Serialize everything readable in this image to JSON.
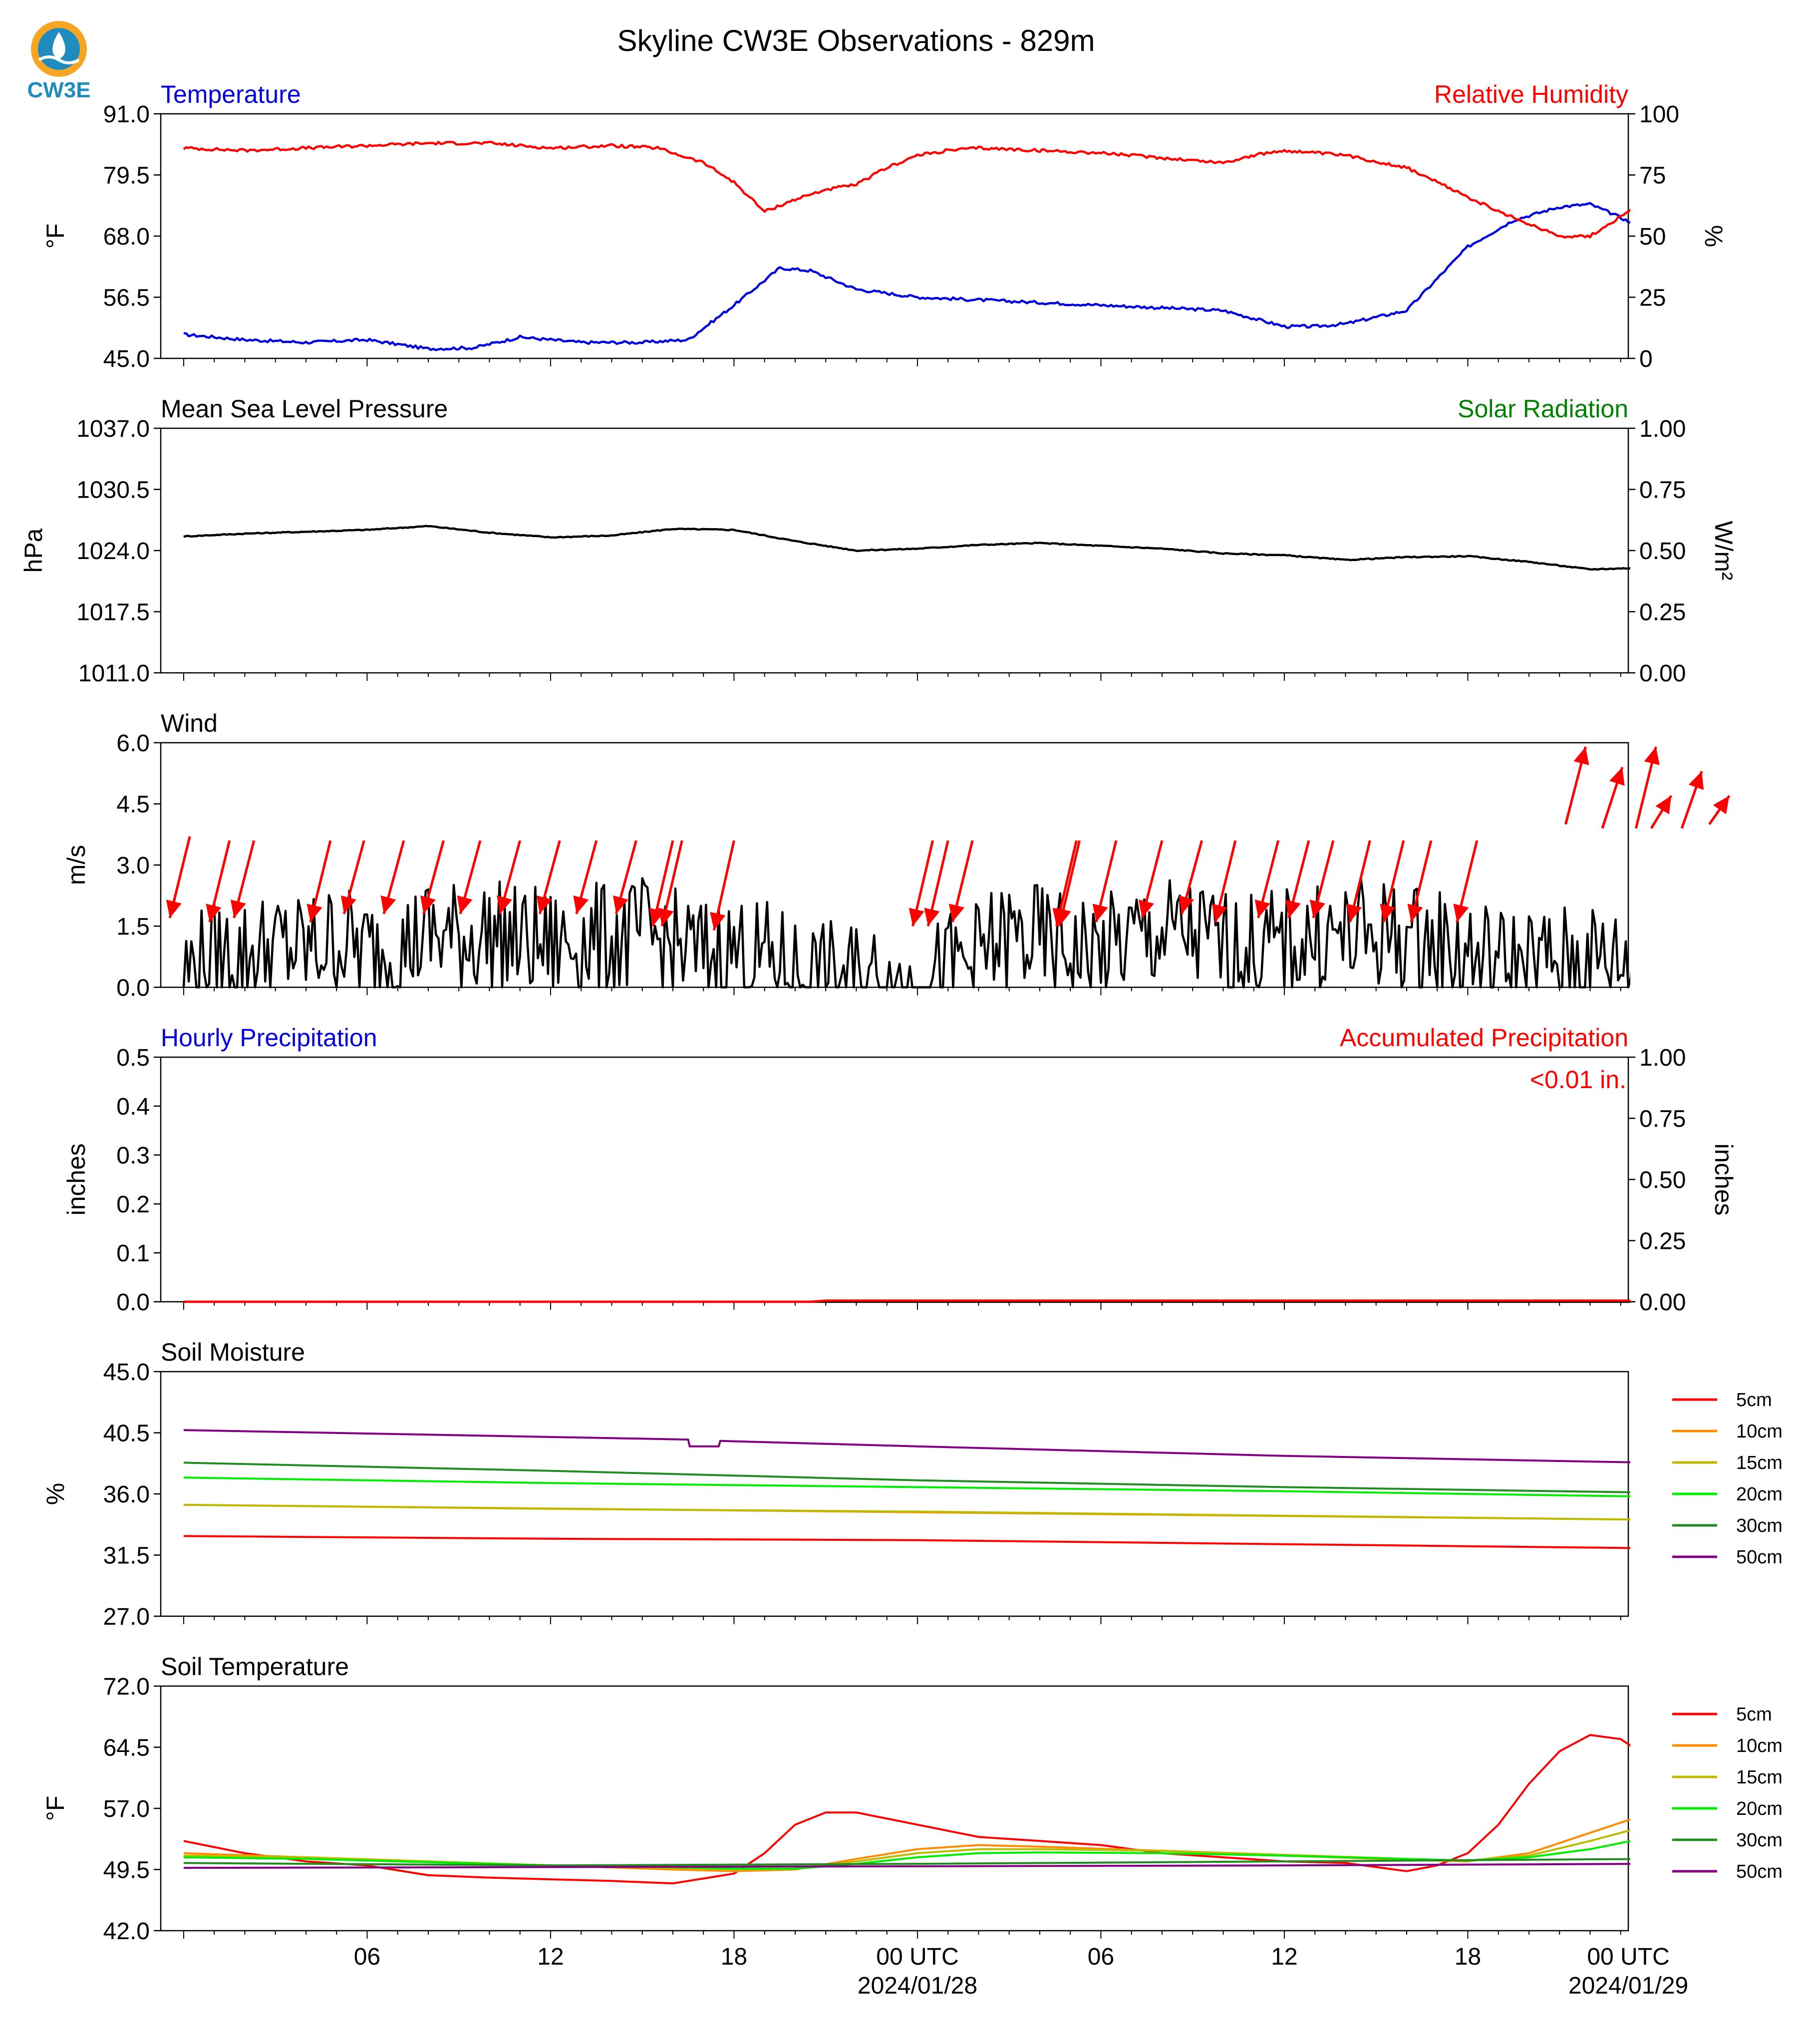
{
  "title": "Skyline CW3E Observations - 829m",
  "logo": {
    "text": "CW3E",
    "icon": "cw3e-logo-icon"
  },
  "colors": {
    "blue": "#0000dd",
    "red": "#ff0000",
    "green": "#008000",
    "black": "#000000"
  },
  "x_axis": {
    "range_hours": [
      0,
      48
    ],
    "ticks": [
      "06",
      "12",
      "18",
      "00 UTC",
      "06",
      "12",
      "18",
      "00 UTC"
    ],
    "dates": [
      "2024/01/28",
      "2024/01/29"
    ]
  },
  "chart_data": [
    {
      "type": "line",
      "left_label": "Temperature",
      "right_label": "Relative Humidity",
      "ylabel_left": "°F",
      "ylabel_right": "%",
      "ylim_left": [
        45.0,
        91.0
      ],
      "ylim_right": [
        0,
        100
      ],
      "yticks_left": [
        "45.0",
        "56.5",
        "68.0",
        "79.5",
        "91.0"
      ],
      "yticks_right": [
        "0",
        "25",
        "50",
        "75",
        "100"
      ],
      "series": [
        {
          "axis": "left",
          "color": "#0000dd",
          "x": [
            0,
            2,
            4,
            6,
            8,
            9.5,
            11,
            13,
            15,
            16.5,
            18,
            19.5,
            20.5,
            22,
            24,
            26,
            28,
            30,
            32,
            34,
            36,
            37,
            38,
            40,
            42,
            43.5,
            45,
            46,
            47,
            48
          ],
          "y": [
            49.5,
            48.5,
            48,
            48.5,
            46.8,
            47,
            49,
            48,
            48,
            48.5,
            55,
            62,
            61.5,
            58,
            56.5,
            56,
            55.5,
            55,
            54.5,
            54,
            51,
            51,
            51.5,
            54,
            66,
            71,
            73.5,
            74,
            71.5,
            68.5
          ]
        },
        {
          "axis": "right",
          "color": "#ff0000",
          "x": [
            0,
            2,
            4,
            6,
            8,
            10,
            12,
            14,
            15.5,
            17,
            18,
            19,
            20,
            21,
            22,
            23,
            24,
            25,
            26,
            28,
            30,
            32,
            34,
            35,
            36,
            38,
            40,
            42,
            43,
            44,
            45,
            46,
            47,
            48
          ],
          "y": [
            86,
            85,
            86,
            87,
            88,
            88,
            86,
            87,
            86,
            80,
            72,
            60,
            65,
            69,
            71,
            78,
            83,
            85,
            86,
            85,
            84,
            82,
            80,
            83,
            85,
            83,
            78,
            66,
            60,
            55,
            50,
            50,
            58,
            65
          ]
        }
      ]
    },
    {
      "type": "line",
      "left_label": "Mean Sea Level Pressure",
      "right_label": "Solar Radiation",
      "ylabel_left": "hPa",
      "ylabel_right": "W/m²",
      "ylim_left": [
        1011.0,
        1037.0
      ],
      "ylim_right": [
        0.0,
        1.0
      ],
      "yticks_left": [
        "1011.0",
        "1017.5",
        "1024.0",
        "1030.5",
        "1037.0"
      ],
      "yticks_right": [
        "0.00",
        "0.25",
        "0.50",
        "0.75",
        "1.00"
      ],
      "series": [
        {
          "axis": "left",
          "color": "#000000",
          "x": [
            0,
            2,
            4,
            6,
            8,
            10,
            12,
            14,
            16,
            18,
            20,
            22,
            24,
            26,
            28,
            30,
            32,
            34,
            36,
            38,
            40,
            42,
            44,
            46,
            48
          ],
          "y": [
            1025.5,
            1025.8,
            1026,
            1026.2,
            1026.6,
            1025.9,
            1025.4,
            1025.6,
            1026.3,
            1026.2,
            1025.0,
            1024.0,
            1024.2,
            1024.6,
            1024.8,
            1024.5,
            1024.2,
            1023.7,
            1023.5,
            1023.0,
            1023.3,
            1023.4,
            1022.8,
            1022.0,
            1022.2
          ]
        }
      ]
    },
    {
      "type": "line",
      "left_label": "Wind",
      "ylabel_left": "m/s",
      "ylim_left": [
        0.0,
        6.0
      ],
      "yticks_left": [
        "0.0",
        "1.5",
        "3.0",
        "4.5",
        "6.0"
      ],
      "series": [
        {
          "axis": "left",
          "color": "#000000",
          "x": [
            0,
            1,
            2,
            3,
            4,
            5,
            6,
            7,
            8,
            9,
            10,
            11,
            12,
            13,
            14,
            15,
            16,
            17,
            18,
            19,
            20,
            21,
            22,
            23,
            24,
            25,
            26,
            27,
            28,
            29,
            30,
            31,
            32,
            33,
            34,
            35,
            36,
            37,
            38,
            39,
            40,
            41,
            42,
            43,
            44,
            45,
            46,
            47,
            48
          ],
          "y": [
            0.4,
            0.7,
            0.8,
            1.0,
            0.9,
            1.2,
            0.9,
            0.9,
            1.3,
            1.2,
            1.3,
            1.1,
            1.0,
            1.2,
            1.1,
            1.3,
            1.0,
            0.8,
            0.9,
            0.7,
            0.4,
            0.2,
            0.2,
            0.1,
            0.0,
            0.4,
            0.8,
            1.2,
            1.1,
            0.9,
            0.8,
            1.2,
            1.3,
            1.3,
            1.0,
            0.9,
            1.0,
            1.2,
            1.2,
            1.3,
            1.2,
            1.0,
            0.8,
            0.6,
            0.6,
            0.6,
            0.7,
            0.6,
            0.4
          ]
        }
      ],
      "arrows": [
        {
          "x": 0.2,
          "y0": 3.7,
          "y1": 1.7
        },
        {
          "x": 1.5,
          "y0": 3.6,
          "y1": 1.6
        },
        {
          "x": 2.3,
          "y0": 3.6,
          "y1": 1.7
        },
        {
          "x": 4.8,
          "y0": 3.6,
          "y1": 1.6
        },
        {
          "x": 5.9,
          "y0": 3.6,
          "y1": 1.8
        },
        {
          "x": 7.2,
          "y0": 3.6,
          "y1": 1.8
        },
        {
          "x": 8.5,
          "y0": 3.6,
          "y1": 1.8
        },
        {
          "x": 9.7,
          "y0": 3.6,
          "y1": 1.8
        },
        {
          "x": 11.0,
          "y0": 3.6,
          "y1": 1.8
        },
        {
          "x": 12.3,
          "y0": 3.6,
          "y1": 1.8
        },
        {
          "x": 13.5,
          "y0": 3.6,
          "y1": 1.8
        },
        {
          "x": 14.8,
          "y0": 3.6,
          "y1": 1.8
        },
        {
          "x": 16.0,
          "y0": 3.6,
          "y1": 1.5
        },
        {
          "x": 16.3,
          "y0": 3.6,
          "y1": 1.5
        },
        {
          "x": 18.0,
          "y0": 3.6,
          "y1": 1.4
        },
        {
          "x": 24.5,
          "y0": 3.6,
          "y1": 1.5
        },
        {
          "x": 25.0,
          "y0": 3.6,
          "y1": 1.5
        },
        {
          "x": 25.8,
          "y0": 3.6,
          "y1": 1.6
        },
        {
          "x": 29.2,
          "y0": 3.6,
          "y1": 1.5
        },
        {
          "x": 29.3,
          "y0": 3.6,
          "y1": 1.5
        },
        {
          "x": 30.5,
          "y0": 3.6,
          "y1": 1.6
        },
        {
          "x": 32.0,
          "y0": 3.6,
          "y1": 1.7
        },
        {
          "x": 33.3,
          "y0": 3.6,
          "y1": 1.8
        },
        {
          "x": 34.4,
          "y0": 3.6,
          "y1": 1.6
        },
        {
          "x": 35.8,
          "y0": 3.6,
          "y1": 1.7
        },
        {
          "x": 36.8,
          "y0": 3.6,
          "y1": 1.7
        },
        {
          "x": 37.6,
          "y0": 3.6,
          "y1": 1.7
        },
        {
          "x": 38.8,
          "y0": 3.6,
          "y1": 1.6
        },
        {
          "x": 39.9,
          "y0": 3.6,
          "y1": 1.6
        },
        {
          "x": 40.8,
          "y0": 3.6,
          "y1": 1.6
        },
        {
          "x": 42.3,
          "y0": 3.6,
          "y1": 1.6
        },
        {
          "x": 45.2,
          "y0": 4.0,
          "y1": 5.9
        },
        {
          "x": 46.4,
          "y0": 3.9,
          "y1": 5.4
        },
        {
          "x": 47.5,
          "y0": 3.9,
          "y1": 5.9
        },
        {
          "x": 48.0,
          "y0": 3.9,
          "y1": 4.7
        },
        {
          "x": 49.0,
          "y0": 3.9,
          "y1": 5.3
        },
        {
          "x": 49.9,
          "y0": 4.0,
          "y1": 4.7
        }
      ]
    },
    {
      "type": "line",
      "left_label": "Hourly Precipitation",
      "right_label": "Accumulated Precipitation",
      "annotation": "<0.01 in.",
      "ylabel_left": "inches",
      "ylabel_right": "inches",
      "ylim_left": [
        0.0,
        0.5
      ],
      "ylim_right": [
        0.0,
        1.0
      ],
      "yticks_left": [
        "0.0",
        "0.1",
        "0.2",
        "0.3",
        "0.4",
        "0.5"
      ],
      "yticks_right": [
        "0.00",
        "0.25",
        "0.50",
        "0.75",
        "1.00"
      ],
      "series": [
        {
          "axis": "left",
          "color": "#000000",
          "x": [
            0,
            48
          ],
          "y": [
            0,
            0
          ]
        },
        {
          "axis": "right",
          "color": "#ff0000",
          "x": [
            0,
            20.5,
            21.0,
            48
          ],
          "y": [
            0,
            0,
            0.005,
            0.005
          ]
        }
      ]
    },
    {
      "type": "line",
      "left_label": "Soil Moisture",
      "ylabel_left": "%",
      "ylim_left": [
        27.0,
        45.0
      ],
      "yticks_left": [
        "27.0",
        "31.5",
        "36.0",
        "40.5",
        "45.0"
      ],
      "legend": [
        "5cm",
        "10cm",
        "15cm",
        "20cm",
        "30cm",
        "50cm"
      ],
      "series": [
        {
          "name": "5cm",
          "color": "#ff0000",
          "x": [
            0,
            12,
            24,
            36,
            48
          ],
          "y": [
            32.9,
            32.7,
            32.6,
            32.3,
            32.0
          ]
        },
        {
          "name": "10cm",
          "color": "#ff8c00",
          "x": [
            0,
            48
          ],
          "y": [
            35.2,
            34.1
          ]
        },
        {
          "name": "15cm",
          "color": "#bbbb00",
          "x": [
            0,
            12,
            24,
            36,
            48
          ],
          "y": [
            35.2,
            34.9,
            34.7,
            34.4,
            34.1
          ]
        },
        {
          "name": "20cm",
          "color": "#00ee00",
          "x": [
            0,
            12,
            24,
            36,
            48
          ],
          "y": [
            37.2,
            36.8,
            36.5,
            36.2,
            35.8
          ]
        },
        {
          "name": "30cm",
          "color": "#228b22",
          "x": [
            0,
            12,
            24,
            36,
            48
          ],
          "y": [
            38.3,
            37.7,
            37.0,
            36.5,
            36.1
          ]
        },
        {
          "name": "50cm",
          "color": "#800080",
          "x": [
            0,
            16.5,
            16.55,
            17.5,
            17.55,
            24,
            36,
            48
          ],
          "y": [
            40.7,
            40.0,
            39.5,
            39.5,
            39.9,
            39.5,
            38.8,
            38.3
          ]
        }
      ]
    },
    {
      "type": "line",
      "left_label": "Soil Temperature",
      "ylabel_left": "°F",
      "ylim_left": [
        42.0,
        72.0
      ],
      "yticks_left": [
        "42.0",
        "49.5",
        "57.0",
        "64.5",
        "72.0"
      ],
      "legend": [
        "5cm",
        "10cm",
        "15cm",
        "20cm",
        "30cm",
        "50cm"
      ],
      "series": [
        {
          "name": "5cm",
          "color": "#ff0000",
          "x": [
            0,
            2,
            4,
            6,
            8,
            10,
            12,
            14,
            16,
            18,
            19,
            20,
            21,
            22,
            24,
            26,
            28,
            30,
            32,
            34,
            36,
            38,
            40,
            41,
            42,
            43,
            44,
            45,
            46,
            47,
            48
          ],
          "y": [
            53.0,
            51.5,
            50.5,
            50.0,
            48.8,
            48.5,
            48.3,
            48.1,
            47.8,
            49.0,
            51.5,
            55.0,
            56.5,
            56.5,
            55.0,
            53.5,
            53.0,
            52.5,
            51.5,
            51.0,
            50.5,
            50.3,
            49.3,
            50.0,
            51.5,
            55.0,
            60.0,
            64.0,
            66.0,
            65.5,
            63.0
          ]
        },
        {
          "name": "10cm",
          "color": "#ff8c00",
          "x": [
            0,
            4,
            8,
            12,
            16,
            18,
            20,
            22,
            24,
            26,
            28,
            32,
            36,
            40,
            42,
            44,
            46,
            48
          ],
          "y": [
            51.5,
            51.0,
            50.5,
            50.0,
            49.5,
            49.3,
            49.5,
            50.8,
            52.0,
            52.5,
            52.3,
            51.8,
            51.2,
            50.7,
            50.5,
            51.5,
            54.0,
            56.5
          ]
        },
        {
          "name": "15cm",
          "color": "#bbbb00",
          "x": [
            0,
            4,
            8,
            12,
            16,
            18,
            20,
            22,
            24,
            26,
            28,
            32,
            36,
            40,
            42,
            44,
            46,
            48
          ],
          "y": [
            51.2,
            51.0,
            50.5,
            50.0,
            49.7,
            49.5,
            49.6,
            50.5,
            51.5,
            52.0,
            52.0,
            51.8,
            51.3,
            50.8,
            50.6,
            51.2,
            53.0,
            55.0
          ]
        },
        {
          "name": "20cm",
          "color": "#00ee00",
          "x": [
            0,
            4,
            8,
            12,
            16,
            18,
            20,
            22,
            24,
            26,
            28,
            32,
            36,
            40,
            42,
            44,
            46,
            48
          ],
          "y": [
            51.0,
            50.8,
            50.4,
            50.0,
            49.8,
            49.6,
            49.6,
            50.2,
            51.0,
            51.5,
            51.6,
            51.5,
            51.2,
            50.8,
            50.6,
            51.0,
            52.0,
            53.5
          ]
        },
        {
          "name": "30cm",
          "color": "#228b22",
          "x": [
            0,
            12,
            24,
            36,
            48
          ],
          "y": [
            50.3,
            50.0,
            50.2,
            50.5,
            50.8
          ]
        },
        {
          "name": "50cm",
          "color": "#800080",
          "x": [
            0,
            12,
            24,
            36,
            48
          ],
          "y": [
            49.7,
            49.8,
            49.9,
            50.0,
            50.2
          ]
        }
      ]
    }
  ]
}
